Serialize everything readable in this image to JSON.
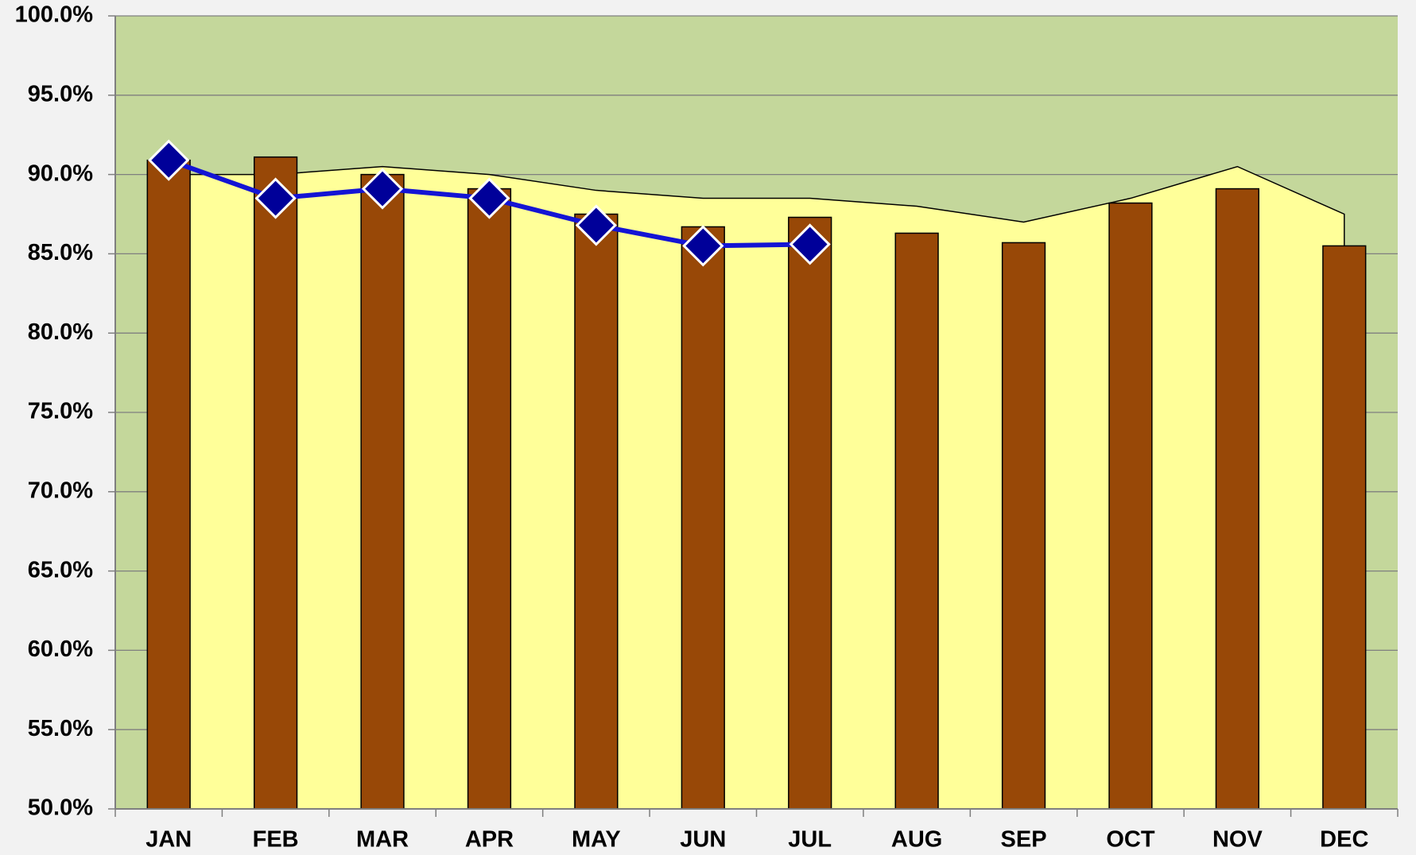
{
  "chart_data": {
    "type": "bar",
    "categories": [
      "JAN",
      "FEB",
      "MAR",
      "APR",
      "MAY",
      "JUN",
      "JUL",
      "AUG",
      "SEP",
      "OCT",
      "NOV",
      "DEC"
    ],
    "series": [
      {
        "type": "area",
        "color": "#ffff99",
        "values": [
          90.0,
          90.0,
          90.5,
          90.0,
          89.0,
          88.5,
          88.5,
          88.0,
          87.0,
          88.5,
          90.5,
          87.5
        ]
      },
      {
        "type": "bar",
        "color": "#984807",
        "values": [
          90.9,
          91.1,
          90.0,
          89.1,
          87.5,
          86.7,
          87.3,
          86.3,
          85.7,
          88.2,
          89.1,
          85.5
        ]
      },
      {
        "type": "line",
        "color": "#1414d4",
        "marker_color": "#000099",
        "values": [
          90.9,
          88.5,
          89.1,
          88.5,
          86.8,
          85.5,
          85.6,
          null,
          null,
          null,
          null,
          null
        ]
      }
    ],
    "ylim": [
      50,
      100
    ],
    "yticks": [
      {
        "value": 50,
        "label": "50.0%"
      },
      {
        "value": 55,
        "label": "55.0%"
      },
      {
        "value": 60,
        "label": "60.0%"
      },
      {
        "value": 65,
        "label": "65.0%"
      },
      {
        "value": 70,
        "label": "70.0%"
      },
      {
        "value": 75,
        "label": "75.0%"
      },
      {
        "value": 80,
        "label": "80.0%"
      },
      {
        "value": 85,
        "label": "85.0%"
      },
      {
        "value": 90,
        "label": "90.0%"
      },
      {
        "value": 95,
        "label": "95.0%"
      },
      {
        "value": 100,
        "label": "100.0%"
      }
    ],
    "grid": true,
    "plot_background": "#c4d79b"
  }
}
